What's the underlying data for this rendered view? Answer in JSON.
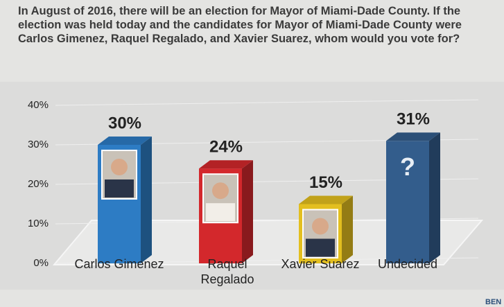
{
  "chart_data": {
    "type": "bar",
    "title": "In August of 2016, there will be an election for Mayor of Miami-Dade County. If the election was held today and the candidates for Mayor of Miami-Dade County were Carlos Gimenez, Raquel Regalado, and Xavier Suarez, whom would you vote for?",
    "categories": [
      "Carlos Gimenez",
      "Raquel Regalado",
      "Xavier Suarez",
      "Undecided"
    ],
    "values": [
      30,
      24,
      15,
      31
    ],
    "value_labels": [
      "30%",
      "24%",
      "15%",
      "31%"
    ],
    "colors": [
      "#2d7cc4",
      "#d3282c",
      "#e3bf1f",
      "#335d8c"
    ],
    "undecided_mark": "?",
    "ylim": [
      0,
      40
    ],
    "yticks": [
      {
        "value": 0,
        "label": "0%"
      },
      {
        "value": 10,
        "label": "10%"
      },
      {
        "value": 20,
        "label": "20%"
      },
      {
        "value": 30,
        "label": "30%"
      },
      {
        "value": 40,
        "label": "40%"
      }
    ],
    "grid": true,
    "corner_text": "BEN"
  }
}
